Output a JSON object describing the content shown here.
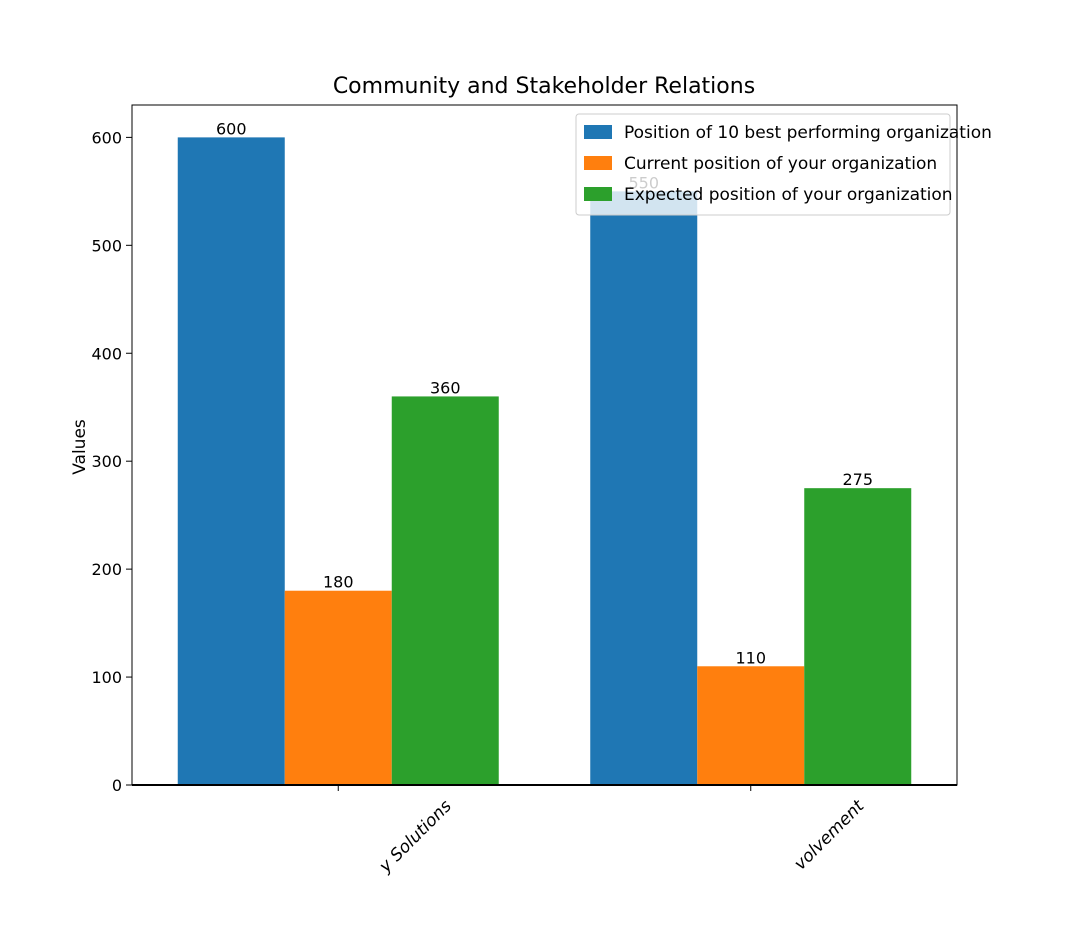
{
  "chart_data": {
    "type": "bar",
    "title": "Community and Stakeholder Relations",
    "xlabel": "",
    "ylabel": "Values",
    "categories": [
      "y Solutions",
      "volvement"
    ],
    "series": [
      {
        "name": "Position of 10 best performing organization",
        "color": "#1f77b4",
        "values": [
          600,
          550
        ]
      },
      {
        "name": "Current position of your organization",
        "color": "#ff7f0e",
        "values": [
          180,
          110
        ]
      },
      {
        "name": "Expected position of your organization",
        "color": "#2ca02c",
        "values": [
          360,
          275
        ]
      }
    ],
    "ylim": [
      0,
      630
    ],
    "yticks": [
      0,
      100,
      200,
      300,
      400,
      500,
      600
    ],
    "grid": false,
    "legend": "top-right"
  }
}
